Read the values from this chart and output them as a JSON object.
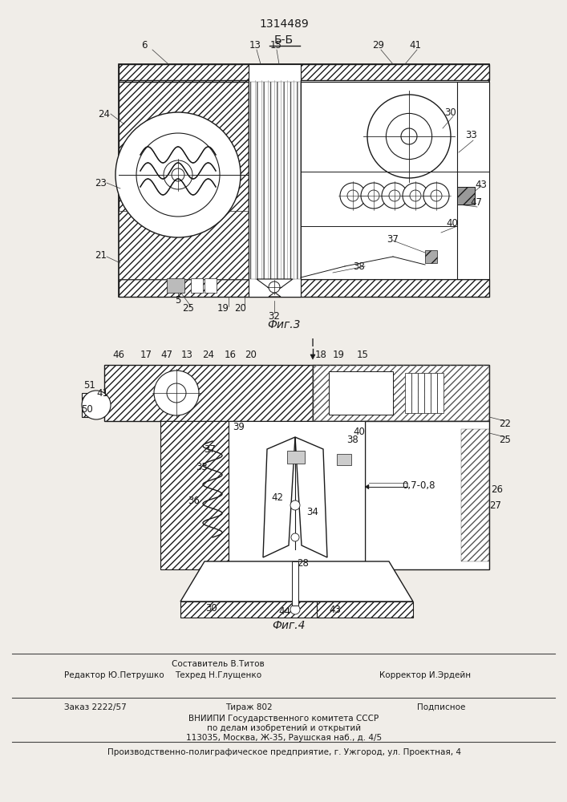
{
  "patent_number": "1314489",
  "section_label": "Б-Б",
  "fig3_label": "Фиг.3",
  "fig4_label": "Фиг.4",
  "bg_color": "#f0ede8",
  "line_color": "#1a1a1a",
  "footer_line1_left": "Редактор Ю.Петрушко",
  "footer_line1_center_top": "Составитель В.Титов",
  "footer_line1_center_bot": "Техред Н.Глущенко",
  "footer_line1_right": "Корректор И.Эрдейн",
  "footer_line2a": "Заказ 2222/57",
  "footer_line2b": "Тираж 802",
  "footer_line2c": "Подписное",
  "footer_line3": "ВНИИПИ Государственного комитета СССР",
  "footer_line4": "по делам изобретений и открытий",
  "footer_line5": "113035, Москва, Ж-35, Раушская наб., д. 4/5",
  "footer_line6": "Производственно-полиграфическое предприятие, г. Ужгород, ул. Проектная, 4"
}
